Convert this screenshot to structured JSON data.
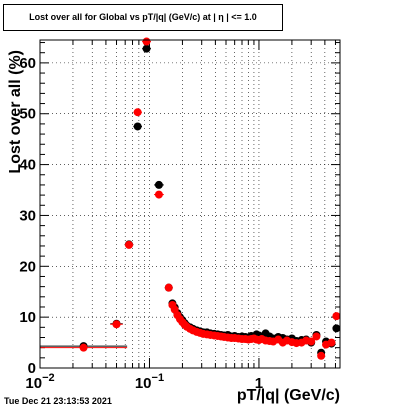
{
  "title": "Lost over all for Global vs pT/|q| (GeV/c) at | η | <= 1.0",
  "timestamp": "Tue Dec 21 23:13:53 2021",
  "chart_data": {
    "type": "scatter",
    "title": "Lost over all for Global vs pT/|q| (GeV/c) at | η | <= 1.0",
    "xlabel": "pT/|q| (GeV/c)",
    "ylabel": "Lost over all (%)",
    "xscale": "log",
    "xlim": [
      0.01,
      5.5
    ],
    "ylim": [
      0,
      64.5
    ],
    "grid": true,
    "x_ticks": [
      {
        "value": 0.01,
        "label": "10",
        "sup": "−2"
      },
      {
        "value": 0.1,
        "label": "10",
        "sup": "−1"
      },
      {
        "value": 1,
        "label": "1",
        "sup": ""
      }
    ],
    "y_ticks": [
      0,
      10,
      20,
      30,
      40,
      50,
      60
    ],
    "series": [
      {
        "color": "#000000",
        "points": [
          [
            0.025,
            4.3
          ],
          [
            0.05,
            8.7
          ],
          [
            0.065,
            24.3
          ],
          [
            0.078,
            47.5
          ],
          [
            0.094,
            62.8
          ],
          [
            0.122,
            36.0
          ],
          [
            0.15,
            15.8
          ],
          [
            0.162,
            12.7
          ],
          [
            0.17,
            11.9
          ],
          [
            0.18,
            10.8
          ],
          [
            0.19,
            10.0
          ],
          [
            0.2,
            9.4
          ],
          [
            0.21,
            8.8
          ],
          [
            0.22,
            8.3
          ],
          [
            0.235,
            8.0
          ],
          [
            0.25,
            7.7
          ],
          [
            0.27,
            7.4
          ],
          [
            0.29,
            7.2
          ],
          [
            0.31,
            7.0
          ],
          [
            0.335,
            7.0
          ],
          [
            0.36,
            6.8
          ],
          [
            0.39,
            6.7
          ],
          [
            0.42,
            6.6
          ],
          [
            0.45,
            6.5
          ],
          [
            0.48,
            6.4
          ],
          [
            0.52,
            6.5
          ],
          [
            0.56,
            6.2
          ],
          [
            0.6,
            6.3
          ],
          [
            0.65,
            6.1
          ],
          [
            0.7,
            6.2
          ],
          [
            0.75,
            6.1
          ],
          [
            0.8,
            6.0
          ],
          [
            0.85,
            6.3
          ],
          [
            0.9,
            6.2
          ],
          [
            0.95,
            6.6
          ],
          [
            1.0,
            6.4
          ],
          [
            1.06,
            6.1
          ],
          [
            1.15,
            6.8
          ],
          [
            1.25,
            6.2
          ],
          [
            1.35,
            5.8
          ],
          [
            1.5,
            6.1
          ],
          [
            1.65,
            5.9
          ],
          [
            1.8,
            5.6
          ],
          [
            2.0,
            5.8
          ],
          [
            2.2,
            5.3
          ],
          [
            2.45,
            5.5
          ],
          [
            2.7,
            5.6
          ],
          [
            3.0,
            5.0
          ],
          [
            3.35,
            6.5
          ],
          [
            3.7,
            3.0
          ],
          [
            4.1,
            5.2
          ],
          [
            4.6,
            4.8
          ],
          [
            5.1,
            7.8
          ]
        ]
      },
      {
        "color": "#ff0000",
        "points": [
          [
            0.025,
            4.0
          ],
          [
            0.05,
            8.6
          ],
          [
            0.065,
            24.2
          ],
          [
            0.078,
            50.3
          ],
          [
            0.094,
            64.2
          ],
          [
            0.122,
            34.1
          ],
          [
            0.15,
            15.8
          ],
          [
            0.162,
            12.4
          ],
          [
            0.17,
            11.5
          ],
          [
            0.18,
            10.4
          ],
          [
            0.19,
            9.6
          ],
          [
            0.2,
            9.0
          ],
          [
            0.21,
            8.5
          ],
          [
            0.22,
            8.1
          ],
          [
            0.235,
            7.7
          ],
          [
            0.25,
            7.4
          ],
          [
            0.27,
            7.1
          ],
          [
            0.29,
            6.9
          ],
          [
            0.31,
            6.7
          ],
          [
            0.335,
            6.6
          ],
          [
            0.36,
            6.5
          ],
          [
            0.39,
            6.4
          ],
          [
            0.42,
            6.3
          ],
          [
            0.45,
            6.2
          ],
          [
            0.48,
            6.1
          ],
          [
            0.52,
            6.0
          ],
          [
            0.56,
            5.9
          ],
          [
            0.6,
            5.9
          ],
          [
            0.65,
            5.8
          ],
          [
            0.7,
            5.7
          ],
          [
            0.75,
            5.7
          ],
          [
            0.8,
            5.6
          ],
          [
            0.85,
            5.7
          ],
          [
            0.9,
            5.8
          ],
          [
            0.95,
            5.6
          ],
          [
            1.0,
            5.5
          ],
          [
            1.06,
            5.7
          ],
          [
            1.15,
            5.4
          ],
          [
            1.25,
            5.3
          ],
          [
            1.35,
            5.2
          ],
          [
            1.5,
            5.6
          ],
          [
            1.65,
            5.0
          ],
          [
            1.8,
            5.4
          ],
          [
            2.0,
            5.1
          ],
          [
            2.2,
            4.9
          ],
          [
            2.45,
            5.0
          ],
          [
            2.7,
            5.4
          ],
          [
            3.0,
            5.2
          ],
          [
            3.35,
            6.2
          ],
          [
            3.7,
            2.4
          ],
          [
            4.1,
            4.6
          ],
          [
            4.6,
            5.0
          ],
          [
            5.1,
            10.2
          ]
        ]
      }
    ]
  }
}
